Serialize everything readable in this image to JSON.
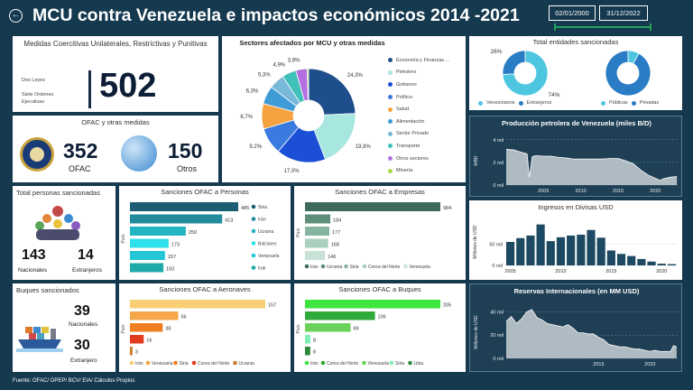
{
  "header": {
    "title": "MCU contra Venezuela e impactos económicos 2014 -2021",
    "date_from": "02/01/2000",
    "date_to": "31/12/2022"
  },
  "medidas": {
    "title": "Medidas Coercitivas Unilaterales, Restrictivas y Punitivas",
    "labels": [
      "Dos Leyes",
      "Siete Ordenes",
      "Ejecutivas"
    ],
    "value": "502"
  },
  "ofac": {
    "title": "OFAC y otras medidas",
    "ofac_value": "352",
    "ofac_label": "OFAC",
    "otros_value": "150",
    "otros_label": "Otros"
  },
  "personas": {
    "title": "Total personas sancionadas",
    "nacionales_value": "143",
    "nacionales_label": "Nacionales",
    "extranjeros_value": "14",
    "extranjeros_label": "Extranjeros"
  },
  "buques": {
    "title": "Buques sancionados",
    "nacionales_value": "39",
    "nacionales_label": "Nacionales",
    "extranjero_value": "30",
    "extranjero_label": "Extranjero"
  },
  "entidades": {
    "title": "Total entidades sancionadas",
    "legend1": [
      "Venezolanos",
      "Extranjeros"
    ],
    "legend2": [
      "Públicas",
      "Privadas"
    ]
  },
  "footer": "Fuente: OFAC/ OPEP/ BCV/ EIA/ Cálculos Propios",
  "chart_data": [
    {
      "id": "sectores",
      "type": "pie",
      "title": "Sectores afectados por MCU y otras medidas",
      "categories": [
        "Economía y Finanzas ...",
        "Petrolero",
        "Gobierno",
        "Político",
        "Salud",
        "Alimentación",
        "Sector Privado",
        "Transporte",
        "Otros sectores",
        "Minería"
      ],
      "values": [
        24.3,
        19.9,
        17.0,
        9.2,
        8.7,
        6.3,
        5.3,
        4.9,
        3.9,
        0.5
      ],
      "labels": [
        "24,3%",
        "19,9%",
        "17,0%",
        "9,2%",
        "8,7%",
        "6,3%",
        "5,3%",
        "4,9%",
        "3,9%",
        ""
      ],
      "colors": [
        "#1f4e8c",
        "#a8e6e0",
        "#1a4fd6",
        "#3a7be0",
        "#f4a340",
        "#3f9bd6",
        "#78b8d8",
        "#3fc0b8",
        "#b46fe0",
        "#a8d94c"
      ]
    },
    {
      "id": "entidades1",
      "type": "pie",
      "categories": [
        "Venezolanos",
        "Extranjeros"
      ],
      "values": [
        74,
        26
      ],
      "labels": [
        "74%",
        "26%"
      ],
      "colors": [
        "#4ec6e0",
        "#2a7cc4"
      ]
    },
    {
      "id": "entidades2",
      "type": "pie",
      "categories": [
        "Públicas",
        "Privadas"
      ],
      "values": [
        8,
        92
      ],
      "labels": [
        "8%",
        "92%"
      ],
      "colors": [
        "#4ec6e0",
        "#2a7cc4"
      ]
    },
    {
      "id": "personas",
      "type": "bar",
      "title": "Sanciones OFAC a Personas",
      "ylabel": "País",
      "categories": [
        "Siria",
        "Irán",
        "Ucrania",
        "Balcanes",
        "Venezuela",
        "Irak"
      ],
      "values": [
        485,
        413,
        250,
        173,
        157,
        150
      ],
      "colors": [
        "#1c5f74",
        "#238a9c",
        "#22b4c0",
        "#2ee0ea",
        "#22c6d4",
        "#1eaaa8"
      ]
    },
    {
      "id": "empresas",
      "type": "bar",
      "title": "Sanciones OFAC a Empresas",
      "ylabel": "País",
      "categories": [
        "Irán",
        "Ucrania",
        "Siria",
        "Corea del Norte",
        "Venezuela"
      ],
      "values": [
        984,
        184,
        177,
        168,
        146
      ],
      "colors": [
        "#3d6b5a",
        "#5f8f7a",
        "#87b4a0",
        "#aacfbf",
        "#c8e2d6"
      ]
    },
    {
      "id": "aeronaves",
      "type": "bar",
      "title": "Sanciones OFAC a Aeronaves",
      "ylabel": "País",
      "categories": [
        "Irán",
        "Venezuela",
        "Siria",
        "Corea del Norte",
        "Ucrania"
      ],
      "values": [
        157,
        56,
        38,
        16,
        3
      ],
      "colors": [
        "#f9cf74",
        "#f4a648",
        "#f07f22",
        "#e13c1e",
        "#c97d2a"
      ]
    },
    {
      "id": "buques",
      "type": "bar",
      "title": "Sanciones OFAC a Buques",
      "ylabel": "País",
      "categories": [
        "Irán",
        "Corea del Norte",
        "Venezuela",
        "Siria",
        "Libia"
      ],
      "values": [
        205,
        106,
        69,
        8,
        8
      ],
      "colors": [
        "#3ee63e",
        "#2fa93a",
        "#6ad15a",
        "#7ef0b2",
        "#2d8a3d"
      ]
    },
    {
      "id": "petroleo",
      "type": "area",
      "title": "Producción petrolera de Venezuela (miles B/D)",
      "ylabel": "MBD",
      "ylim": [
        0,
        4.3
      ],
      "y_ticks": [
        0,
        2,
        4
      ],
      "y_tick_labels": [
        "0 mil",
        "2 mil",
        "4 mil"
      ],
      "x_ticks": [
        2005,
        2010,
        2015,
        2020
      ],
      "xlim": [
        2000,
        2023
      ],
      "x": [
        2000,
        2001,
        2002,
        2002.8,
        2003.1,
        2003.5,
        2004,
        2005,
        2006,
        2007,
        2008,
        2009,
        2010,
        2011,
        2012,
        2013,
        2014,
        2015,
        2016,
        2017,
        2018,
        2019,
        2020,
        2020.7,
        2021,
        2022,
        2022.9
      ],
      "y": [
        3.15,
        3.1,
        2.9,
        2.75,
        0.7,
        2.5,
        2.6,
        2.55,
        2.55,
        2.45,
        2.4,
        2.3,
        2.3,
        2.3,
        2.3,
        2.3,
        2.35,
        2.35,
        2.15,
        1.9,
        1.35,
        0.9,
        0.6,
        0.4,
        0.55,
        0.7,
        0.75
      ]
    },
    {
      "id": "divisas",
      "type": "bar",
      "title": "Ingresos en Divisas USD",
      "ylabel": "Millones de USD",
      "ylim": [
        0,
        110
      ],
      "y_ticks": [
        0,
        50
      ],
      "y_tick_labels": [
        "0 mil",
        "50 mil"
      ],
      "x_ticks": [
        2005,
        2010,
        2015,
        2020
      ],
      "xlim": [
        2004.5,
        2021.5
      ],
      "categories": [
        2005,
        2006,
        2007,
        2008,
        2009,
        2010,
        2011,
        2012,
        2013,
        2014,
        2015,
        2016,
        2017,
        2018,
        2019,
        2020,
        2021
      ],
      "values": [
        55,
        64,
        70,
        96,
        57,
        66,
        70,
        72,
        83,
        65,
        35,
        27,
        22,
        15,
        9,
        4,
        3
      ]
    },
    {
      "id": "reservas",
      "type": "area",
      "title": "Reservas Internacionales (en MM USD)",
      "ylabel": "Millones de USD",
      "ylim": [
        0,
        45
      ],
      "y_ticks": [
        0,
        20,
        40
      ],
      "y_tick_labels": [
        "0 mil",
        "20 mil",
        "40 mil"
      ],
      "x_ticks": [
        2015,
        2020
      ],
      "xlim": [
        2006,
        2022.7
      ],
      "x": [
        2006,
        2006.5,
        2007,
        2007.5,
        2008,
        2008.5,
        2009,
        2009.5,
        2010,
        2010.5,
        2011,
        2011.5,
        2012,
        2012.5,
        2013,
        2013.5,
        2014,
        2014.5,
        2015,
        2015.5,
        2016,
        2016.5,
        2017,
        2017.5,
        2018,
        2018.5,
        2019,
        2019.5,
        2020,
        2020.5,
        2021,
        2021.5,
        2022,
        2022.3,
        2022.6
      ],
      "y": [
        32,
        36,
        30,
        34,
        40,
        42,
        35,
        33,
        30,
        29,
        28,
        27,
        29,
        26,
        22,
        22,
        21,
        21,
        18,
        16,
        12,
        11,
        10,
        10,
        9,
        8,
        8,
        7,
        6,
        7,
        6,
        6,
        6,
        11,
        10
      ]
    }
  ]
}
